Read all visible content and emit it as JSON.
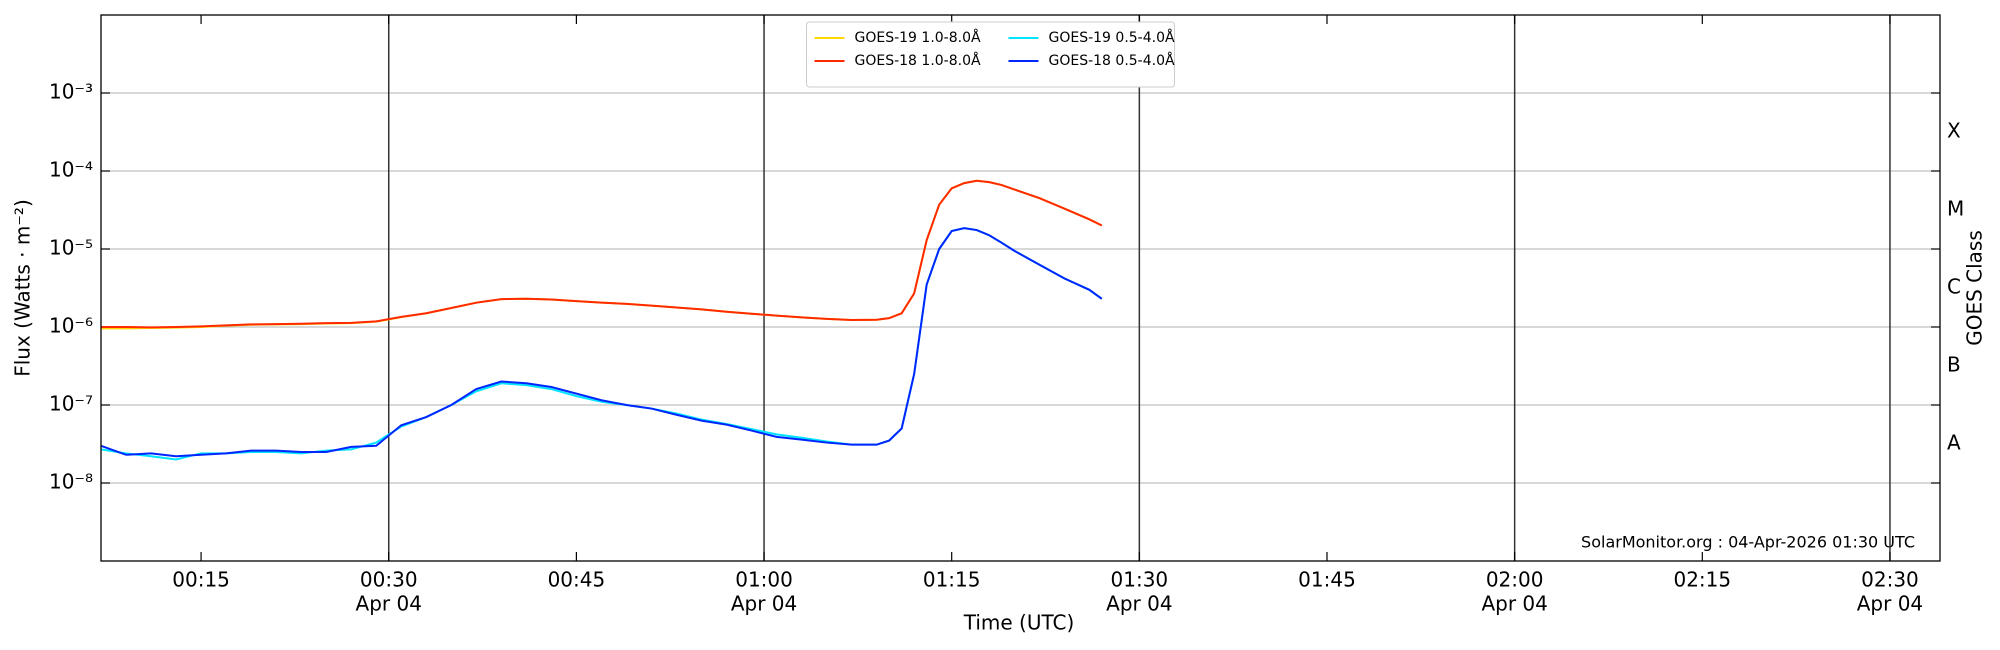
{
  "chart_data": {
    "type": "line",
    "x_label": "Time (UTC)",
    "y_label": "Flux (Watts · m⁻²)",
    "y2_label": "GOES Class",
    "annotation": "SolarMonitor.org : 04-Apr-2026 01:30 UTC",
    "log_y": true,
    "grid": true,
    "date_lines": true,
    "legend": "upper center",
    "x": [
      "00:07",
      "00:09",
      "00:11",
      "00:13",
      "00:15",
      "00:17",
      "00:19",
      "00:21",
      "00:23",
      "00:25",
      "00:27",
      "00:29",
      "00:31",
      "00:33",
      "00:35",
      "00:37",
      "00:39",
      "00:41",
      "00:43",
      "00:45",
      "00:47",
      "00:49",
      "00:51",
      "00:53",
      "00:55",
      "00:57",
      "00:59",
      "01:01",
      "01:03",
      "01:05",
      "01:07",
      "01:09",
      "01:10",
      "01:11",
      "01:12",
      "01:13",
      "01:14",
      "01:15",
      "01:16",
      "01:17",
      "01:18",
      "01:19",
      "01:20",
      "01:22",
      "01:24",
      "01:26",
      "01:27"
    ],
    "series": [
      {
        "name": "GOES-19 1.0-8.0Å",
        "color": "#ffd700",
        "values": [
          9.6e-07,
          9.6e-07,
          9.7e-07,
          9.8e-07,
          1e-06,
          1.04e-06,
          1.07e-06,
          1.08e-06,
          1.09e-06,
          1.11e-06,
          1.12e-06,
          1.17e-06,
          1.34e-06,
          1.5e-06,
          1.75e-06,
          2.05e-06,
          2.28e-06,
          2.3e-06,
          2.25e-06,
          2.15e-06,
          2.05e-06,
          1.98e-06,
          1.88e-06,
          1.78e-06,
          1.68e-06,
          1.57e-06,
          1.48e-06,
          1.4e-06,
          1.33e-06,
          1.27e-06,
          1.23e-06,
          1.24e-06,
          1.3e-06,
          1.5e-06,
          2.7e-06,
          1.3e-05,
          3.7e-05,
          6e-05,
          7e-05,
          7.5e-05,
          7.2e-05,
          6.6e-05,
          5.8e-05,
          4.5e-05,
          3.3e-05,
          2.4e-05,
          2e-05
        ]
      },
      {
        "name": "GOES-18 1.0-8.0Å",
        "color": "#ff2a00",
        "values": [
          1e-06,
          1e-06,
          9.9e-07,
          1e-06,
          1.02e-06,
          1.05e-06,
          1.08e-06,
          1.09e-06,
          1.1e-06,
          1.12e-06,
          1.13e-06,
          1.18e-06,
          1.35e-06,
          1.5e-06,
          1.75e-06,
          2.05e-06,
          2.28e-06,
          2.3e-06,
          2.25e-06,
          2.15e-06,
          2.05e-06,
          1.98e-06,
          1.88e-06,
          1.78e-06,
          1.68e-06,
          1.57e-06,
          1.48e-06,
          1.4e-06,
          1.33e-06,
          1.27e-06,
          1.23e-06,
          1.24e-06,
          1.3e-06,
          1.5e-06,
          2.7e-06,
          1.3e-05,
          3.7e-05,
          6e-05,
          7e-05,
          7.5e-05,
          7.2e-05,
          6.6e-05,
          5.8e-05,
          4.5e-05,
          3.3e-05,
          2.4e-05,
          2e-05
        ]
      },
      {
        "name": "GOES-19 0.5-4.0Å",
        "color": "#00e5ff",
        "values": [
          2.7e-08,
          2.4e-08,
          2.2e-08,
          2e-08,
          2.4e-08,
          2.4e-08,
          2.5e-08,
          2.5e-08,
          2.4e-08,
          2.6e-08,
          2.7e-08,
          3.3e-08,
          5.3e-08,
          7e-08,
          1e-07,
          1.5e-07,
          1.9e-07,
          1.8e-07,
          1.6e-07,
          1.3e-07,
          1.1e-07,
          1e-07,
          9e-08,
          7.8e-08,
          6.5e-08,
          5.7e-08,
          4.9e-08,
          4.2e-08,
          3.8e-08,
          3.4e-08,
          3.1e-08,
          3.1e-08,
          3.5e-08,
          5e-08,
          2.5e-07,
          3.5e-06,
          1e-05,
          1.7e-05,
          1.85e-05,
          1.75e-05,
          1.5e-05,
          1.2e-05,
          9.5e-06,
          6.3e-06,
          4.2e-06,
          3e-06,
          2.3e-06
        ]
      },
      {
        "name": "GOES-18 0.5-4.0Å",
        "color": "#0026ff",
        "values": [
          3e-08,
          2.3e-08,
          2.4e-08,
          2.2e-08,
          2.3e-08,
          2.4e-08,
          2.6e-08,
          2.6e-08,
          2.5e-08,
          2.5e-08,
          2.9e-08,
          3e-08,
          5.5e-08,
          7e-08,
          1e-07,
          1.6e-07,
          2e-07,
          1.9e-07,
          1.7e-07,
          1.4e-07,
          1.15e-07,
          1e-07,
          9e-08,
          7.5e-08,
          6.3e-08,
          5.6e-08,
          4.7e-08,
          3.9e-08,
          3.6e-08,
          3.3e-08,
          3.1e-08,
          3.1e-08,
          3.5e-08,
          5e-08,
          2.5e-07,
          3.5e-06,
          1e-05,
          1.7e-05,
          1.85e-05,
          1.75e-05,
          1.5e-05,
          1.2e-05,
          9.5e-06,
          6.3e-06,
          4.2e-06,
          3e-06,
          2.3e-06
        ]
      }
    ],
    "xlim": [
      "00:07",
      "02:34"
    ],
    "xticks": [
      "00:15",
      "00:30",
      "00:45",
      "01:00",
      "01:15",
      "01:30",
      "01:45",
      "02:00",
      "02:15",
      "02:30"
    ],
    "xtick_dates": [
      null,
      "Apr 04",
      null,
      "Apr 04",
      null,
      "Apr 04",
      null,
      "Apr 04",
      null,
      "Apr 04"
    ],
    "ylim": [
      1e-09,
      0.01
    ],
    "yticks": [
      {
        "value": 1e-08,
        "label": "10⁻⁸"
      },
      {
        "value": 1e-07,
        "label": "10⁻⁷"
      },
      {
        "value": 1e-06,
        "label": "10⁻⁶"
      },
      {
        "value": 1e-05,
        "label": "10⁻⁵"
      },
      {
        "value": 0.0001,
        "label": "10⁻⁴"
      },
      {
        "value": 0.001,
        "label": "10⁻³"
      }
    ],
    "y2lim": [
      1e-09,
      0.01
    ],
    "y2ticks": [
      {
        "value": 3.1623e-08,
        "label": "A"
      },
      {
        "value": 3.1623e-07,
        "label": "B"
      },
      {
        "value": 3.1623e-06,
        "label": "C"
      },
      {
        "value": 3.1623e-05,
        "label": "M"
      },
      {
        "value": 0.00031623,
        "label": "X"
      }
    ]
  }
}
